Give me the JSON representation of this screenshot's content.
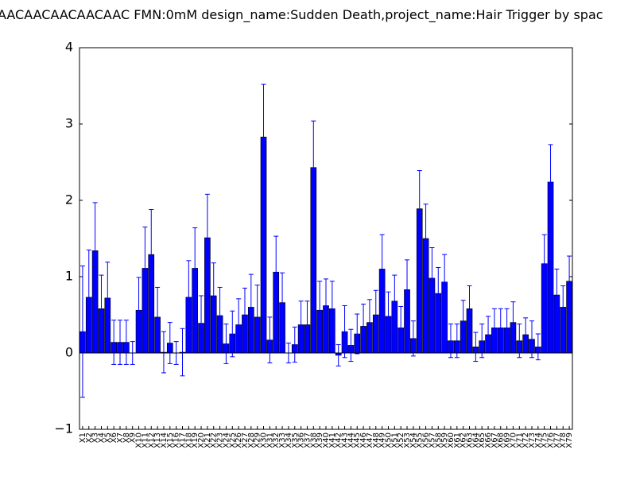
{
  "chart_data": {
    "type": "bar",
    "title": "AACAACAACAACAAC  FMN:0mM  design_name:Sudden Death,project_name:Hair Trigger by spac",
    "categories": [
      "X1",
      "X2",
      "X3",
      "X4",
      "X5",
      "X6",
      "X7",
      "X8",
      "X9",
      "X10",
      "X11",
      "X12",
      "X13",
      "X14",
      "X15",
      "X16",
      "X17",
      "X18",
      "X19",
      "X20",
      "X21",
      "X22",
      "X23",
      "X24",
      "X25",
      "X26",
      "X27",
      "X28",
      "X29",
      "X30",
      "X31",
      "X32",
      "X33",
      "X34",
      "X35",
      "X36",
      "X37",
      "X38",
      "X39",
      "X40",
      "X41",
      "X42",
      "X43",
      "X44",
      "X45",
      "X46",
      "X47",
      "X48",
      "X49",
      "X50",
      "X51",
      "X52",
      "X53",
      "X54",
      "X55",
      "X56",
      "X57",
      "X58",
      "X59",
      "X60",
      "X61",
      "X62",
      "X63",
      "X64",
      "X65",
      "X66",
      "X67",
      "X68",
      "X69",
      "X70",
      "X71",
      "X72",
      "X73",
      "X74",
      "X75",
      "X76",
      "X77",
      "X78",
      "X79"
    ],
    "values": [
      0.28,
      0.73,
      1.34,
      0.58,
      0.72,
      0.14,
      0.14,
      0.14,
      0.0,
      0.56,
      1.11,
      1.29,
      0.47,
      0.01,
      0.13,
      0.0,
      0.01,
      0.73,
      1.11,
      0.39,
      1.51,
      0.75,
      0.49,
      0.12,
      0.25,
      0.37,
      0.5,
      0.6,
      0.47,
      2.83,
      0.17,
      1.06,
      0.66,
      0.0,
      0.11,
      0.37,
      0.37,
      2.43,
      0.56,
      0.62,
      0.58,
      -0.03,
      0.28,
      0.1,
      0.25,
      0.35,
      0.4,
      0.5,
      1.1,
      0.48,
      0.68,
      0.33,
      0.83,
      0.19,
      1.89,
      1.5,
      0.98,
      0.78,
      0.93,
      0.16,
      0.16,
      0.42,
      0.58,
      0.08,
      0.16,
      0.24,
      0.33,
      0.33,
      0.33,
      0.4,
      0.16,
      0.24,
      0.18,
      0.08,
      1.17,
      2.24,
      0.76,
      0.6,
      0.94
    ],
    "errors": [
      0.86,
      0.62,
      0.63,
      0.44,
      0.47,
      0.29,
      0.29,
      0.29,
      0.15,
      0.43,
      0.54,
      0.59,
      0.39,
      0.27,
      0.27,
      0.15,
      0.31,
      0.48,
      0.53,
      0.36,
      0.57,
      0.43,
      0.37,
      0.26,
      0.3,
      0.34,
      0.35,
      0.43,
      0.42,
      0.69,
      0.3,
      0.47,
      0.39,
      0.13,
      0.23,
      0.31,
      0.31,
      0.61,
      0.38,
      0.35,
      0.36,
      0.14,
      0.34,
      0.21,
      0.26,
      0.29,
      0.3,
      0.32,
      0.45,
      0.32,
      0.34,
      0.28,
      0.39,
      0.23,
      0.5,
      0.45,
      0.4,
      0.34,
      0.36,
      0.22,
      0.22,
      0.27,
      0.3,
      0.19,
      0.22,
      0.24,
      0.25,
      0.25,
      0.25,
      0.27,
      0.22,
      0.22,
      0.24,
      0.17,
      0.38,
      0.49,
      0.34,
      0.28,
      0.33
    ],
    "color": "#0000ff",
    "error_color": "#0000ff",
    "ylim": [
      -1,
      4
    ],
    "yticks": [
      {
        "value": -1,
        "label": "−1"
      },
      0,
      1,
      2,
      3,
      4
    ],
    "grid": false
  }
}
